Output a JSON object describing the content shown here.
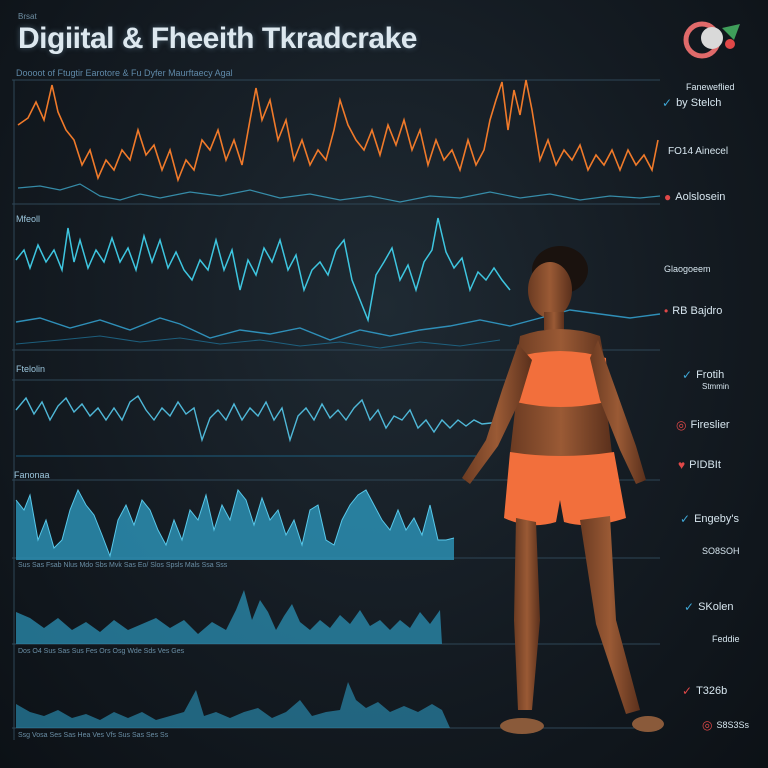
{
  "header": {
    "corner_tag": "Brsat",
    "title": "Digiital & Fheeith Tkradcrake",
    "subtitle": "Doooot of Ftugtir Earotore & Fu Dyfer Maurftaecy Agal"
  },
  "sections": {
    "s1": "Mfeoll",
    "s2": "Ftelolin",
    "s3": "Fanonaa"
  },
  "side_labels": [
    {
      "text": "Faneweflied",
      "icon": "none"
    },
    {
      "text": "by Stelch",
      "icon": "check-icon"
    },
    {
      "text": "FO14 Ainecel",
      "icon": "none"
    },
    {
      "text": "Aolslosein",
      "icon": "drop-icon"
    },
    {
      "text": "Glaogoeem",
      "icon": "none"
    },
    {
      "text": "RB Bajdro",
      "icon": "dot-icon"
    },
    {
      "text": "Frotih",
      "icon": "check-icon"
    },
    {
      "text": "Stmmin",
      "icon": "none"
    },
    {
      "text": "Fireslier",
      "icon": "target-icon"
    },
    {
      "text": "PIDBIt",
      "icon": "heart-icon"
    },
    {
      "text": "Engeby's",
      "icon": "check-icon"
    },
    {
      "text": "SO8SOH",
      "icon": "none"
    },
    {
      "text": "SKolen",
      "icon": "check-icon"
    },
    {
      "text": "Feddie",
      "icon": "none"
    },
    {
      "text": "T326b",
      "icon": "check-icon"
    },
    {
      "text": "S8S3Ss",
      "icon": "target-icon"
    }
  ],
  "axis_rows": {
    "row1": "Sus     Sas     Fsab     Nlus  Mdo     Sbs   Mvk    Sas  Eo/ Slos      Spsls  Mals   Ssa    Sss",
    "row2": "Dos    O4    Sus    Sas     Sus  Fes   Ors   Osg   Wde  Sds  Ves   Ges",
    "row3": "Ssg    Vosa  Ses  Sas      Hea    Ves   Vfs    Sus   Sas  Ses  Ss"
  },
  "colors": {
    "orange": "#f07a2a",
    "cyan": "#3ec6e0",
    "blue_fill": "#2b8fb3",
    "accent_red": "#e04848"
  }
}
